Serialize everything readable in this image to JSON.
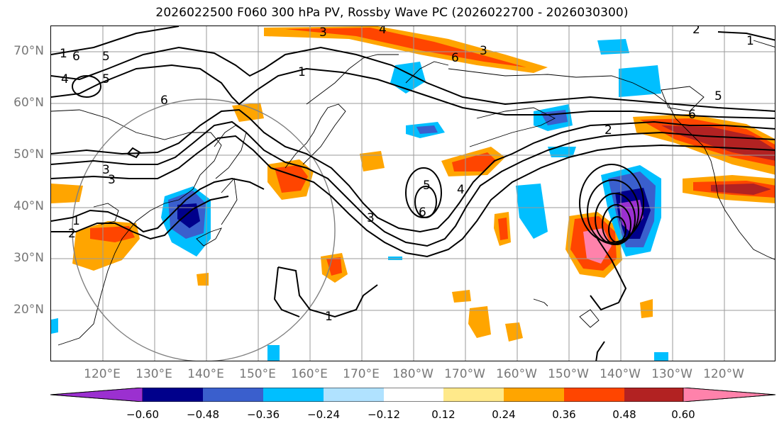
{
  "title": "2026022500 F060 300 hPa PV, Rossby Wave PC (2026022700 - 2026030300)",
  "lat_labels": [
    "70°N",
    "60°N",
    "50°N",
    "40°N",
    "30°N",
    "20°N"
  ],
  "lon_labels": [
    "120°E",
    "130°E",
    "140°E",
    "150°E",
    "160°E",
    "170°E",
    "180°W",
    "170°W",
    "160°W",
    "150°W",
    "140°W",
    "130°W",
    "120°W"
  ],
  "colorbar": {
    "ticks": [
      "−0.60",
      "−0.48",
      "−0.36",
      "−0.24",
      "−0.12",
      "0.12",
      "0.24",
      "0.36",
      "0.48",
      "0.60"
    ],
    "colors": [
      "#9b30d0",
      "#00008b",
      "#3a5fcd",
      "#00bfff",
      "#b0e2ff",
      "#ffffff",
      "#ffe98a",
      "#ffa500",
      "#ff4500",
      "#b22222",
      "#ff82ab"
    ]
  },
  "contour_labels": [
    "1",
    "6",
    "5",
    "4",
    "6",
    "3",
    "4",
    "3",
    "1",
    "2",
    "1",
    "5",
    "3",
    "3",
    "4",
    "5",
    "6",
    "3",
    "1",
    "2",
    "1",
    "6",
    "2",
    "6",
    "5"
  ]
}
